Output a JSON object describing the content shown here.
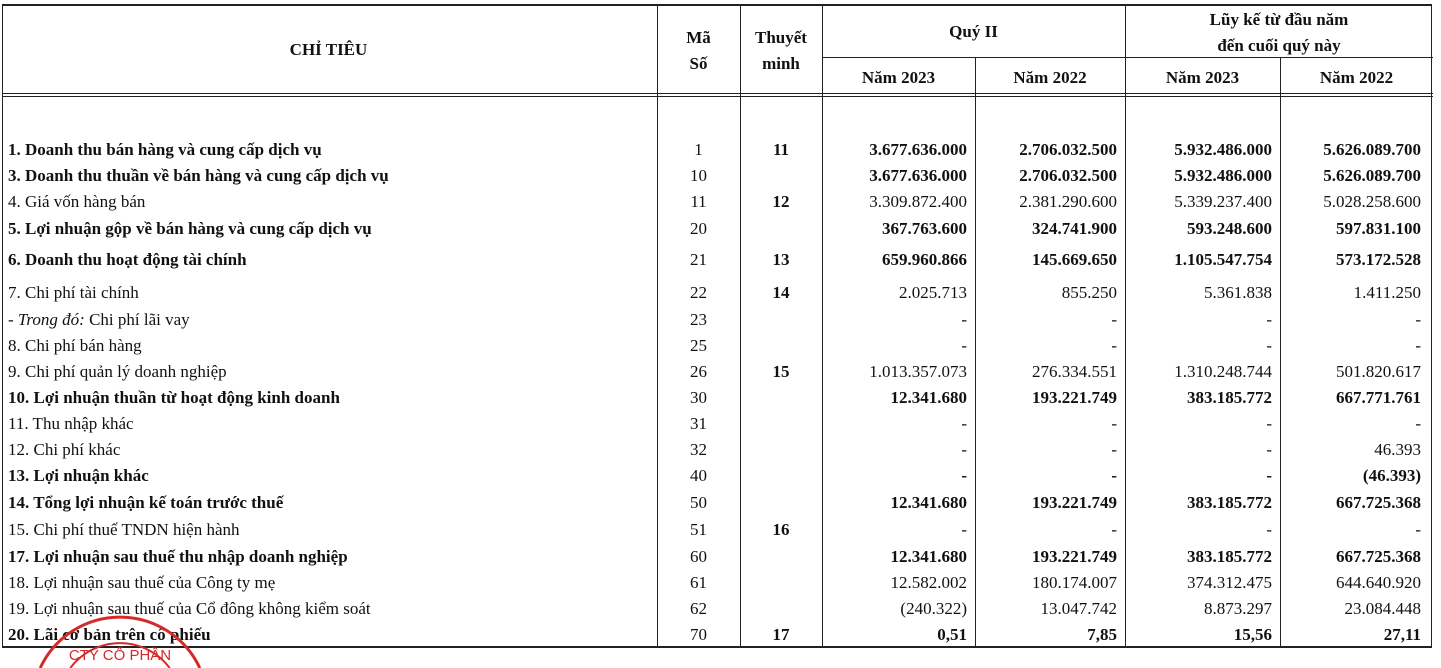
{
  "header": {
    "chi_tieu": "CHỈ TIÊU",
    "ma_so_1": "Mã",
    "ma_so_2": "Số",
    "thuyet_minh_1": "Thuyết",
    "thuyet_minh_2": "minh",
    "quarter": "Quý II",
    "cumulative_1": "Lũy kế từ đầu năm",
    "cumulative_2": "đến cuối quý này",
    "q_2023": "Năm 2023",
    "q_2022": "Năm 2022",
    "c_2023": "Năm 2023",
    "c_2022": "Năm 2022"
  },
  "rows": [
    {
      "label": "1. Doanh thu bán hàng và cung cấp dịch vụ",
      "code": "1",
      "note": "11",
      "q2023": "3.677.636.000",
      "q2022": "2.706.032.500",
      "c2023": "5.932.486.000",
      "c2022": "5.626.089.700",
      "bold": true
    },
    {
      "label": "3. Doanh thu thuần về bán hàng và cung cấp dịch vụ",
      "code": "10",
      "note": "",
      "q2023": "3.677.636.000",
      "q2022": "2.706.032.500",
      "c2023": "5.932.486.000",
      "c2022": "5.626.089.700",
      "bold": true
    },
    {
      "label": "4. Giá vốn hàng bán",
      "code": "11",
      "note": "12",
      "q2023": "3.309.872.400",
      "q2022": "2.381.290.600",
      "c2023": "5.339.237.400",
      "c2022": "5.028.258.600",
      "bold": false
    },
    {
      "label": "5. Lợi nhuận gộp về bán hàng và cung cấp dịch vụ",
      "code": "20",
      "note": "",
      "q2023": "367.763.600",
      "q2022": "324.741.900",
      "c2023": "593.248.600",
      "c2022": "597.831.100",
      "bold": true
    },
    {
      "label": "6. Doanh thu hoạt động tài chính",
      "code": "21",
      "note": "13",
      "q2023": "659.960.866",
      "q2022": "145.669.650",
      "c2023": "1.105.547.754",
      "c2022": "573.172.528",
      "bold": true
    },
    {
      "label": "7. Chi phí tài chính",
      "code": "22",
      "note": "14",
      "q2023": "2.025.713",
      "q2022": "855.250",
      "c2023": "5.361.838",
      "c2022": "1.411.250",
      "bold": false
    },
    {
      "label_prefix": " - Trong đó:",
      "label": " Chi phí lãi vay",
      "code": "23",
      "note": "",
      "q2023": "-",
      "q2022": "-",
      "c2023": "-",
      "c2022": "-",
      "bold": false
    },
    {
      "label": "8. Chi phí bán hàng",
      "code": "25",
      "note": "",
      "q2023": "-",
      "q2022": "-",
      "c2023": "-",
      "c2022": "-",
      "bold": false
    },
    {
      "label": "9. Chi phí quản lý doanh nghiệp",
      "code": "26",
      "note": "15",
      "q2023": "1.013.357.073",
      "q2022": "276.334.551",
      "c2023": "1.310.248.744",
      "c2022": "501.820.617",
      "bold": false
    },
    {
      "label": "10. Lợi nhuận thuần từ hoạt động kinh doanh",
      "code": "30",
      "note": "",
      "q2023": "12.341.680",
      "q2022": "193.221.749",
      "c2023": "383.185.772",
      "c2022": "667.771.761",
      "bold": true
    },
    {
      "label": "11. Thu nhập khác",
      "code": "31",
      "note": "",
      "q2023": "-",
      "q2022": "-",
      "c2023": "-",
      "c2022": "-",
      "bold": false
    },
    {
      "label": "12. Chi phí khác",
      "code": "32",
      "note": "",
      "q2023": "-",
      "q2022": "-",
      "c2023": "-",
      "c2022": "46.393",
      "bold": false
    },
    {
      "label": "13. Lợi nhuận khác",
      "code": "40",
      "note": "",
      "q2023": "-",
      "q2022": "-",
      "c2023": "-",
      "c2022": "(46.393)",
      "bold": true
    },
    {
      "label": "14. Tổng lợi nhuận kế toán trước thuế",
      "code": "50",
      "note": "",
      "q2023": "12.341.680",
      "q2022": "193.221.749",
      "c2023": "383.185.772",
      "c2022": "667.725.368",
      "bold": true
    },
    {
      "label": "15. Chi phí thuế TNDN hiện hành",
      "code": "51",
      "note": "16",
      "q2023": "-",
      "q2022": "-",
      "c2023": "-",
      "c2022": "-",
      "bold": false
    },
    {
      "label": "17. Lợi nhuận sau thuế thu nhập doanh nghiệp",
      "code": "60",
      "note": "",
      "q2023": "12.341.680",
      "q2022": "193.221.749",
      "c2023": "383.185.772",
      "c2022": "667.725.368",
      "bold": true
    },
    {
      "label": "18. Lợi nhuận sau thuế của Công ty mẹ",
      "code": "61",
      "note": "",
      "q2023": "12.582.002",
      "q2022": "180.174.007",
      "c2023": "374.312.475",
      "c2022": "644.640.920",
      "bold": false
    },
    {
      "label": "19. Lợi nhuận sau thuế của Cổ đông không kiểm soát",
      "code": "62",
      "note": "",
      "q2023": "(240.322)",
      "q2022": "13.047.742",
      "c2023": "8.873.297",
      "c2022": "23.084.448",
      "bold": false
    },
    {
      "label": "20. Lãi cơ bản trên cổ phiếu",
      "code": "70",
      "note": "17",
      "q2023": "0,51",
      "q2022": "7,85",
      "c2023": "15,56",
      "c2022": "27,11",
      "bold": true
    }
  ],
  "stamp": {
    "text": "CTY CỔ PHẦN",
    "color": "#d42a2a"
  }
}
